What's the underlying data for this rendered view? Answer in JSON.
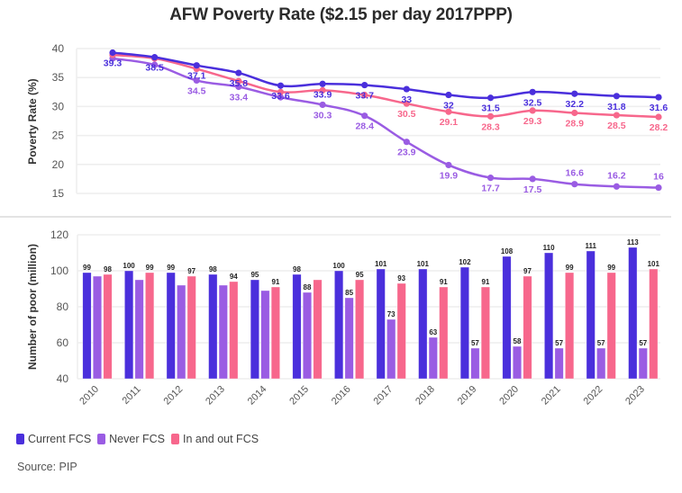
{
  "title": "AFW Poverty Rate ($2.15 per day 2017PPP)",
  "colors": {
    "current": "#4a2fdc",
    "never": "#9a5ce3",
    "inout": "#f7678c"
  },
  "legend": [
    {
      "key": "current",
      "label": "Current FCS"
    },
    {
      "key": "never",
      "label": "Never FCS"
    },
    {
      "key": "inout",
      "label": "In and out FCS"
    }
  ],
  "source": "Source: PIP",
  "chart_data": [
    {
      "type": "line",
      "title": "AFW Poverty Rate ($2.15 per day 2017PPP)",
      "xlabel": "",
      "ylabel": "Poverty Rate (%)",
      "ylim": [
        15,
        40
      ],
      "yticks": [
        40,
        35,
        30,
        25,
        20,
        15
      ],
      "grid": true,
      "x": [
        2010,
        2011,
        2012,
        2013,
        2014,
        2015,
        2016,
        2017,
        2018,
        2019,
        2020,
        2021,
        2022,
        2023
      ],
      "series": [
        {
          "key": "current",
          "name": "Current FCS",
          "values": [
            39.3,
            38.5,
            37.1,
            35.8,
            33.6,
            33.9,
            33.7,
            33,
            32,
            31.5,
            32.5,
            32.2,
            31.8,
            31.6
          ],
          "labels": [
            "39.3",
            "38.5",
            "37.1",
            "35.8",
            "33.6",
            "33.9",
            "33.7",
            "33",
            "32",
            "31.5",
            "32.5",
            "32.2",
            "31.8",
            "31.6"
          ]
        },
        {
          "key": "never",
          "name": "Never FCS",
          "values": [
            38.3,
            37.2,
            34.5,
            33.4,
            31.6,
            30.3,
            28.4,
            23.9,
            19.9,
            17.7,
            17.5,
            16.6,
            16.2,
            16
          ],
          "labels": [
            "",
            "",
            "34.5",
            "33.4",
            "",
            "30.3",
            "28.4",
            "23.9",
            "19.9",
            "17.7",
            "17.5",
            "16.6",
            "16.2",
            "16"
          ]
        },
        {
          "key": "inout",
          "name": "In and out FCS",
          "values": [
            38.9,
            38.3,
            36.5,
            34.4,
            32.5,
            32.8,
            32.0,
            30.5,
            29.1,
            28.3,
            29.3,
            28.9,
            28.5,
            28.2
          ],
          "labels": [
            "",
            "",
            "",
            "",
            "",
            "",
            "",
            "30.5",
            "29.1",
            "28.3",
            "29.3",
            "28.9",
            "28.5",
            "28.2"
          ]
        }
      ]
    },
    {
      "type": "bar",
      "xlabel": "",
      "ylabel": "Number of poor (million)",
      "ylim": [
        40,
        120
      ],
      "yticks": [
        120,
        100,
        80,
        60,
        40
      ],
      "grid": true,
      "legend": "bottom-left",
      "categories": [
        "2010",
        "2011",
        "2012",
        "2013",
        "2014",
        "2015",
        "2016",
        "2017",
        "2018",
        "2019",
        "2020",
        "2021",
        "2022",
        "2023"
      ],
      "series": [
        {
          "key": "current",
          "name": "Current FCS",
          "values": [
            99,
            100,
            99,
            98,
            95,
            98,
            100,
            101,
            101,
            102,
            108,
            110,
            111,
            113
          ],
          "labels": [
            "99",
            "100",
            "99",
            "98",
            "95",
            "98",
            "100",
            "101",
            "101",
            "102",
            "108",
            "110",
            "111",
            "113"
          ]
        },
        {
          "key": "never",
          "name": "Never FCS",
          "values": [
            97,
            95,
            92,
            92,
            89,
            88,
            85,
            73,
            63,
            57,
            58,
            57,
            57,
            57
          ],
          "labels": [
            "",
            "",
            "",
            "",
            "",
            "88",
            "85",
            "73",
            "63",
            "57",
            "58",
            "57",
            "57",
            "57"
          ]
        },
        {
          "key": "inout",
          "name": "In and out FCS",
          "values": [
            98,
            99,
            97,
            94,
            91,
            95,
            95,
            93,
            91,
            91,
            97,
            99,
            99,
            101
          ],
          "labels": [
            "98",
            "99",
            "97",
            "94",
            "91",
            "",
            "95",
            "93",
            "91",
            "91",
            "97",
            "99",
            "99",
            "101"
          ]
        }
      ]
    }
  ]
}
